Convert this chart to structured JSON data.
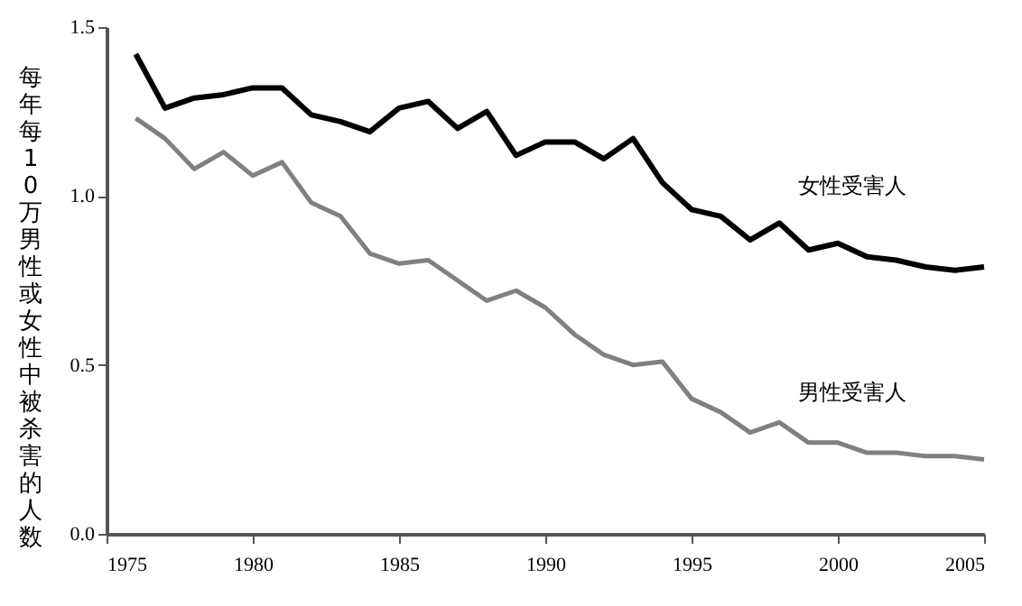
{
  "chart_data": {
    "type": "line",
    "ylabel": "每年每10万男性或女性中被杀害的人数",
    "x": [
      1976,
      1977,
      1978,
      1979,
      1980,
      1981,
      1982,
      1983,
      1984,
      1985,
      1986,
      1987,
      1988,
      1989,
      1990,
      1991,
      1992,
      1993,
      1994,
      1995,
      1996,
      1997,
      1998,
      1999,
      2000,
      2001,
      2002,
      2003,
      2004,
      2005
    ],
    "series": [
      {
        "name": "女性受害人",
        "color": "#000000",
        "values": [
          1.42,
          1.26,
          1.29,
          1.3,
          1.32,
          1.32,
          1.24,
          1.22,
          1.19,
          1.26,
          1.28,
          1.2,
          1.25,
          1.12,
          1.16,
          1.16,
          1.11,
          1.17,
          1.04,
          0.96,
          0.94,
          0.87,
          0.92,
          0.84,
          0.86,
          0.82,
          0.81,
          0.79,
          0.78,
          0.79
        ]
      },
      {
        "name": "男性受害人",
        "color": "#808080",
        "values": [
          1.23,
          1.17,
          1.08,
          1.13,
          1.06,
          1.1,
          0.98,
          0.94,
          0.83,
          0.8,
          0.81,
          0.75,
          0.69,
          0.72,
          0.67,
          0.59,
          0.53,
          0.5,
          0.51,
          0.4,
          0.36,
          0.3,
          0.33,
          0.27,
          0.27,
          0.24,
          0.24,
          0.23,
          0.23,
          0.22
        ]
      }
    ],
    "xlim": [
      1975,
      2005
    ],
    "xticks": [
      1975,
      1980,
      1985,
      1990,
      1995,
      2000,
      2005
    ],
    "ylim": [
      0,
      1.5
    ],
    "yticks": [
      {
        "value": 0.0,
        "label": "0.0"
      },
      {
        "value": 0.5,
        "label": "0.5"
      },
      {
        "value": 1.0,
        "label": "1.0"
      },
      1.5
    ],
    "grid": false,
    "marker": "none",
    "line_style": "solid"
  }
}
